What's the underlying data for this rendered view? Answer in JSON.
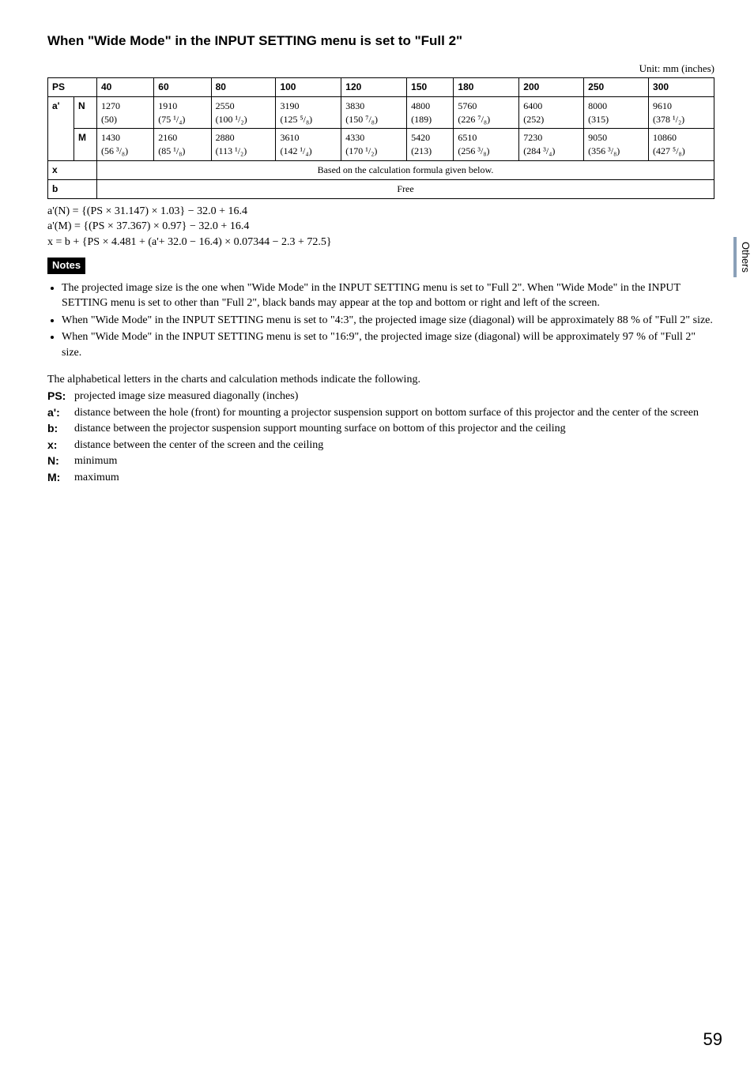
{
  "heading": "When \"Wide Mode\" in the INPUT SETTING menu is set to \"Full 2\"",
  "unit_label": "Unit: mm (inches)",
  "table": {
    "ps_label": "PS",
    "headers": [
      "40",
      "60",
      "80",
      "100",
      "120",
      "150",
      "180",
      "200",
      "250",
      "300"
    ],
    "a_label": "a'",
    "n_label": "N",
    "m_label": "M",
    "x_label": "x",
    "b_label": "b",
    "row_n": [
      "1270",
      "1910",
      "2550",
      "3190",
      "3830",
      "4800",
      "5760",
      "6400",
      "8000",
      "9610"
    ],
    "row_n_in": [
      "(50)",
      "(75 ¹/₄)",
      "(100 ¹/₂)",
      "(125 ⁵/₈)",
      "(150 ⁷/₈)",
      "(189)",
      "(226 ⁷/₈)",
      "(252)",
      "(315)",
      "(378 ¹/₂)"
    ],
    "row_m": [
      "1430",
      "2160",
      "2880",
      "3610",
      "4330",
      "5420",
      "6510",
      "7230",
      "9050",
      "10860"
    ],
    "row_m_in": [
      "(56 ³/₈)",
      "(85 ¹/₈)",
      "(113 ¹/₂)",
      "(142 ¹/₄)",
      "(170 ¹/₂)",
      "(213)",
      "(256 ³/₈)",
      "(284 ³/₄)",
      "(356 ³/₈)",
      "(427 ⁵/₈)"
    ],
    "x_text": "Based on the calculation formula given below.",
    "b_text": "Free"
  },
  "formulas": {
    "l1": "a'(N) = {(PS × 31.147) × 1.03} − 32.0 + 16.4",
    "l2": "a'(M) = {(PS × 37.367) × 0.97} − 32.0 + 16.4",
    "l3": "x = b + {PS × 4.481 + (a'+ 32.0 − 16.4) × 0.07344 − 2.3 + 72.5}"
  },
  "notes_label": "Notes",
  "notes": [
    "The projected image size is the one when \"Wide Mode\" in the INPUT SETTING menu is set to \"Full 2\". When \"Wide Mode\" in the INPUT SETTING menu is set to other than \"Full 2\", black bands may appear at the top and bottom or right and left of the screen.",
    "When \"Wide Mode\" in the INPUT SETTING menu is set to \"4:3\", the projected image size (diagonal) will be approximately 88 % of \"Full 2\" size.",
    "When \"Wide Mode\" in the INPUT SETTING menu is set to \"16:9\", the projected image size (diagonal) will be approximately 97 % of \"Full 2\" size."
  ],
  "defs_intro": "The alphabetical letters in the charts and calculation methods indicate the following.",
  "defs": [
    {
      "k": "PS:",
      "v": "projected image size measured diagonally (inches)"
    },
    {
      "k": "a':",
      "v": "distance between the hole (front) for mounting a projector suspension support on bottom surface of this projector and the center of the screen"
    },
    {
      "k": "b:",
      "v": "distance between the projector suspension support mounting surface on bottom of this projector and the ceiling"
    },
    {
      "k": "x:",
      "v": "distance between the center of the screen and the ceiling"
    },
    {
      "k": "N:",
      "v": "minimum"
    },
    {
      "k": "M:",
      "v": "maximum"
    }
  ],
  "side_tab": "Others",
  "page_number": "59"
}
